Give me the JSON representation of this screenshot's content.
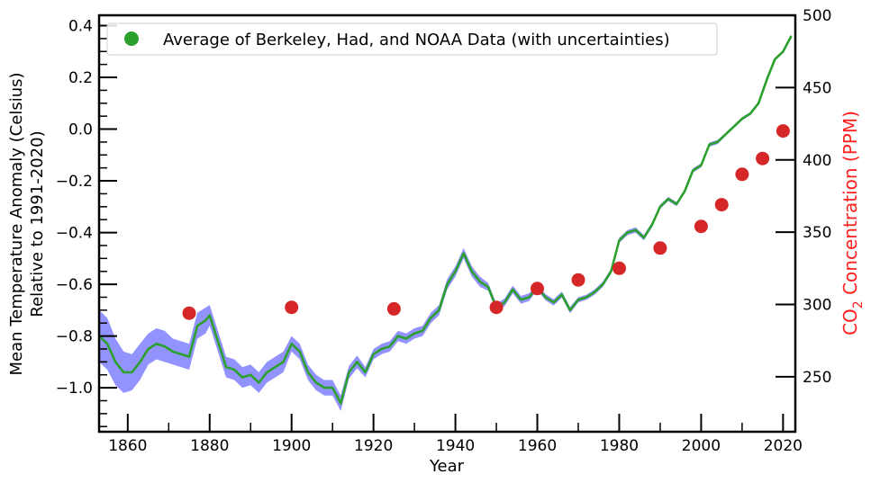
{
  "chart_data": {
    "type": "line",
    "title": "",
    "xlabel": "Year",
    "ylabel_left_line1": "Mean Temperature Anomaly (Celsius)",
    "ylabel_left_line2": "Relative to 1991-2020)",
    "ylabel_right_main": "CO",
    "ylabel_right_sub": "2",
    "ylabel_right_rest": " Concentration (PPM)",
    "xlim": [
      1853,
      2023
    ],
    "ylim_left": [
      -1.17,
      0.44
    ],
    "ylim_right": [
      212,
      500
    ],
    "x_ticks": [
      1860,
      1880,
      1900,
      1920,
      1940,
      1960,
      1980,
      2000,
      2020
    ],
    "x_tick_labels": [
      "1860",
      "1880",
      "1900",
      "1920",
      "1940",
      "1960",
      "1980",
      "2000",
      "2020"
    ],
    "y_left_ticks": [
      -1.0,
      -0.8,
      -0.6,
      -0.4,
      -0.2,
      0.0,
      0.2,
      0.4
    ],
    "y_left_tick_labels": [
      "−1.0",
      "−0.8",
      "−0.6",
      "−0.4",
      "−0.2",
      "0.0",
      "0.2",
      "0.4"
    ],
    "y_right_ticks": [
      250,
      300,
      350,
      400,
      450,
      500
    ],
    "y_right_tick_labels": [
      "250",
      "300",
      "350",
      "400",
      "450",
      "500"
    ],
    "grid": false,
    "legend_position": "top-left",
    "legend_label": "Average of Berkeley, Had, and NOAA Data (with uncertainties)",
    "colors": {
      "temperature": "#2ca02c",
      "uncertainty": "#8080ff",
      "co2": "#d62728",
      "right_axis_label": "#ff2020"
    },
    "series": [
      {
        "name": "Average of Berkeley, Had, and NOAA Data (with uncertainties)",
        "axis": "left",
        "x": [
          1853,
          1855,
          1857,
          1859,
          1861,
          1863,
          1865,
          1867,
          1869,
          1871,
          1873,
          1875,
          1877,
          1879,
          1880,
          1882,
          1884,
          1886,
          1888,
          1890,
          1892,
          1894,
          1896,
          1898,
          1900,
          1902,
          1904,
          1906,
          1908,
          1910,
          1912,
          1914,
          1916,
          1918,
          1920,
          1922,
          1924,
          1926,
          1928,
          1930,
          1932,
          1934,
          1936,
          1938,
          1940,
          1942,
          1944,
          1946,
          1948,
          1950,
          1952,
          1954,
          1956,
          1958,
          1960,
          1962,
          1964,
          1966,
          1968,
          1970,
          1972,
          1974,
          1976,
          1978,
          1980,
          1982,
          1984,
          1986,
          1988,
          1990,
          1992,
          1994,
          1996,
          1998,
          2000,
          2002,
          2004,
          2006,
          2008,
          2010,
          2012,
          2014,
          2016,
          2018,
          2020,
          2022
        ],
        "y": [
          -0.8,
          -0.83,
          -0.9,
          -0.94,
          -0.94,
          -0.9,
          -0.85,
          -0.83,
          -0.84,
          -0.86,
          -0.87,
          -0.88,
          -0.76,
          -0.74,
          -0.72,
          -0.82,
          -0.92,
          -0.93,
          -0.96,
          -0.95,
          -0.98,
          -0.94,
          -0.92,
          -0.9,
          -0.83,
          -0.86,
          -0.94,
          -0.98,
          -1.0,
          -1.0,
          -1.06,
          -0.94,
          -0.9,
          -0.94,
          -0.87,
          -0.85,
          -0.84,
          -0.8,
          -0.81,
          -0.79,
          -0.78,
          -0.73,
          -0.7,
          -0.6,
          -0.55,
          -0.48,
          -0.55,
          -0.59,
          -0.61,
          -0.69,
          -0.67,
          -0.62,
          -0.66,
          -0.65,
          -0.61,
          -0.65,
          -0.67,
          -0.64,
          -0.7,
          -0.66,
          -0.65,
          -0.63,
          -0.6,
          -0.55,
          -0.43,
          -0.4,
          -0.39,
          -0.42,
          -0.37,
          -0.3,
          -0.27,
          -0.29,
          -0.24,
          -0.16,
          -0.14,
          -0.06,
          -0.05,
          -0.02,
          0.01,
          0.04,
          0.06,
          0.1,
          0.19,
          0.27,
          0.3,
          0.36
        ],
        "uncertainty": [
          0.1,
          0.1,
          0.09,
          0.08,
          0.07,
          0.07,
          0.06,
          0.06,
          0.06,
          0.05,
          0.05,
          0.05,
          0.05,
          0.05,
          0.04,
          0.04,
          0.04,
          0.04,
          0.04,
          0.04,
          0.04,
          0.04,
          0.04,
          0.04,
          0.03,
          0.03,
          0.03,
          0.03,
          0.03,
          0.03,
          0.03,
          0.025,
          0.025,
          0.02,
          0.02,
          0.02,
          0.02,
          0.02,
          0.02,
          0.02,
          0.02,
          0.02,
          0.02,
          0.02,
          0.02,
          0.02,
          0.02,
          0.02,
          0.015,
          0.015,
          0.015,
          0.015,
          0.015,
          0.015,
          0.012,
          0.012,
          0.012,
          0.012,
          0.012,
          0.01,
          0.01,
          0.01,
          0.01,
          0.01,
          0.01,
          0.01,
          0.01,
          0.01,
          0.01,
          0.008,
          0.008,
          0.008,
          0.008,
          0.008,
          0.008,
          0.008,
          0.008,
          0.006,
          0.006,
          0.006,
          0.006,
          0.006,
          0.006,
          0.006,
          0.006,
          0.006
        ]
      },
      {
        "name": "",
        "axis": "right",
        "type": "scatter",
        "x": [
          1875,
          1900,
          1925,
          1950,
          1960,
          1970,
          1980,
          1990,
          2000,
          2005,
          2010,
          2015,
          2020
        ],
        "y": [
          294,
          298,
          297,
          298,
          311,
          317,
          325,
          339,
          354,
          369,
          390,
          401,
          420
        ]
      }
    ]
  }
}
